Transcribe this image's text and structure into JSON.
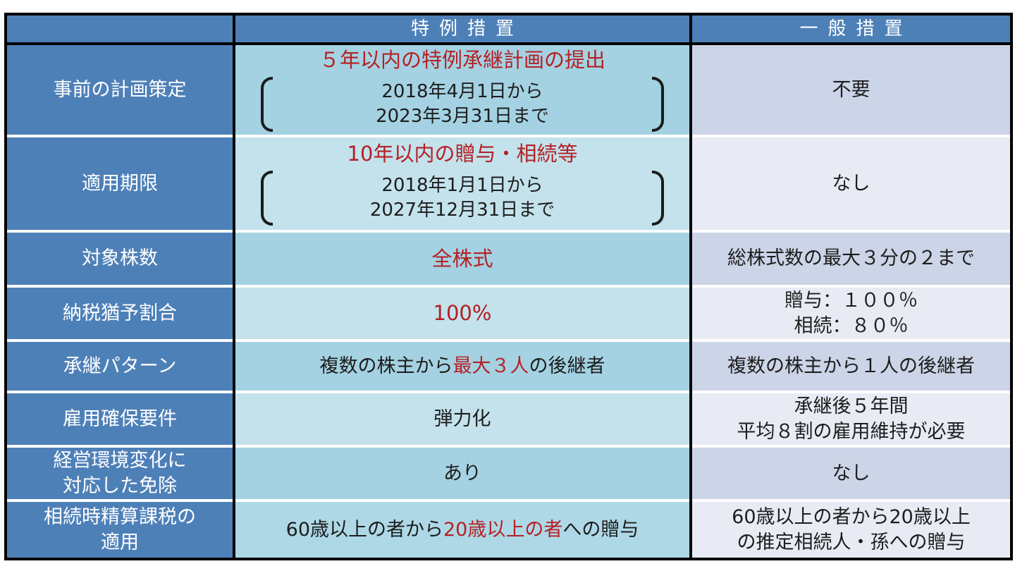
{
  "colors": {
    "header_blue": "#4e80b8",
    "special_col_dark": "#a4d2e2",
    "special_col_light": "#c3e2ec",
    "general_col_dark": "#ccd4e7",
    "general_col_light": "#e8ebf4",
    "highlight_red": "#b52025",
    "border_black": "#000000",
    "separator_white": "#ffffff"
  },
  "header": {
    "special": "特例措置",
    "general": "一般措置"
  },
  "rows": {
    "planning": {
      "label": "事前の計画策定",
      "special_title": "５年以内の特例承継計画の提出",
      "special_date1": "2018年4月1日から",
      "special_date2": "2023年3月31日まで",
      "general": "不要"
    },
    "deadline": {
      "label": "適用期限",
      "special_title": "10年以内の贈与・相続等",
      "special_date1": "2018年1月1日から",
      "special_date2": "2027年12月31日まで",
      "general": "なし"
    },
    "shares": {
      "label": "対象株数",
      "special": "全株式",
      "general": "総株式数の最大３分の２まで"
    },
    "deferral": {
      "label": "納税猶予割合",
      "special": "100%",
      "general_line1": "贈与：１００％",
      "general_line2": "相続：８０％"
    },
    "pattern": {
      "label": "承継パターン",
      "special_pre": "複数の株主から",
      "special_highlight": "最大３人",
      "special_post": "の後継者",
      "general": "複数の株主から１人の後継者"
    },
    "employment": {
      "label": "雇用確保要件",
      "special": "弾力化",
      "general_line1": "承継後５年間",
      "general_line2": "平均８割の雇用維持が必要"
    },
    "exemption": {
      "label_line1": "経営環境変化に",
      "label_line2": "対応した免除",
      "special": "あり",
      "general": "なし"
    },
    "settlement": {
      "label_line1": "相続時精算課税の",
      "label_line2": "適用",
      "special_pre": "60歳以上の者から",
      "special_highlight": "20歳以上の者",
      "special_post": "への贈与",
      "general_line1": "60歳以上の者から20歳以上",
      "general_line2": "の推定相続人・孫への贈与"
    }
  }
}
